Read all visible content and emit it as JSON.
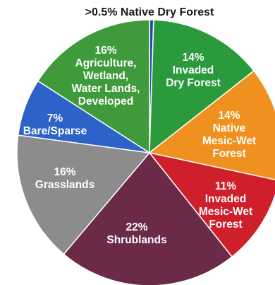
{
  "chart_data": {
    "type": "pie",
    "slices": [
      {
        "pct": 0.5,
        "percent_text": ">0.5%",
        "label": "Native Dry Forest",
        "color": "#1f4fa8"
      },
      {
        "pct": 14,
        "percent_text": "14%",
        "label": "Invaded Dry Forest",
        "color": "#2b9a3c"
      },
      {
        "pct": 14,
        "percent_text": "14%",
        "label": "Native Mesic-Wet Forest",
        "color": "#f0901e"
      },
      {
        "pct": 11,
        "percent_text": "11%",
        "label": "Invaded Mesic-Wet Forest",
        "color": "#cf1f2a"
      },
      {
        "pct": 22,
        "percent_text": "22%",
        "label": "Shrublands",
        "color": "#6b2a48"
      },
      {
        "pct": 16,
        "percent_text": "16%",
        "label": "Grasslands",
        "color": "#8c8c8c"
      },
      {
        "pct": 7,
        "percent_text": "7%",
        "label": "Bare/Sparse",
        "color": "#2d63c8"
      },
      {
        "pct": 16,
        "percent_text": "16%",
        "label": "Agriculture, Wetland, Water Lands, Developed",
        "color": "#3e9a3a"
      }
    ]
  }
}
